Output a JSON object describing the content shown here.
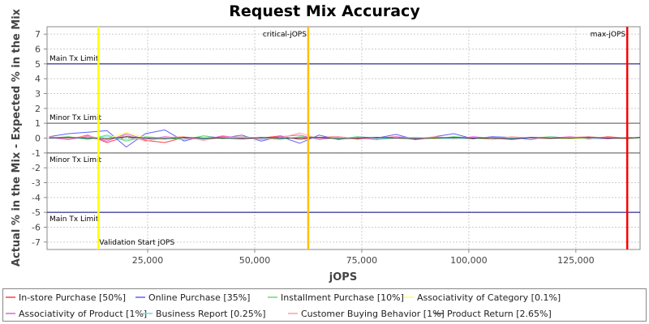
{
  "chart_data": {
    "type": "line",
    "title": "Request Mix Accuracy",
    "xlabel": "jOPS",
    "ylabel": "Actual % in the Mix - Expected % in the Mix",
    "xlim": [
      1500,
      140000
    ],
    "ylim": [
      -7.5,
      7.5
    ],
    "x_ticks": [
      25000,
      50000,
      75000,
      100000,
      125000
    ],
    "x_tick_labels": [
      "25,000",
      "50,000",
      "75,000",
      "100,000",
      "125,000"
    ],
    "y_ticks": [
      7,
      6,
      5,
      4,
      3,
      2,
      1,
      0,
      -1,
      -2,
      -3,
      -4,
      -5,
      -6,
      -7
    ],
    "y_tick_labels": [
      "7",
      "6",
      "5",
      "4",
      "3",
      "2",
      "1",
      "0",
      "-1",
      "-2",
      "-3",
      "-4",
      "-5",
      "-6",
      "-7"
    ],
    "grid": true,
    "legend_position": "bottom",
    "limit_lines": [
      {
        "label": "Main Tx Limit",
        "y": 5,
        "color": "#000080"
      },
      {
        "label": "Minor Tx Limit",
        "y": 1,
        "color": "#555555"
      },
      {
        "label": "Minor Tx Limit",
        "y": -1,
        "color": "#555555"
      },
      {
        "label": "Main Tx Limit",
        "y": -5,
        "color": "#000080"
      }
    ],
    "markers": [
      {
        "label": "Validation Start jOPS",
        "x": 13500,
        "color": "#ffff00",
        "label_position": "bottom"
      },
      {
        "label": "critical-jOPS",
        "x": 62500,
        "color": "#ffc000",
        "label_position": "top"
      },
      {
        "label": "max-jOPS",
        "x": 137000,
        "color": "#ff0000",
        "label_position": "top"
      }
    ],
    "series": [
      {
        "name": "In-store Purchase [50%]",
        "color": "#ff4040",
        "x": [
          2000,
          6500,
          11000,
          15500,
          20000,
          24500,
          29000,
          33500,
          38000,
          42500,
          47000,
          51500,
          56000,
          60500,
          65000,
          69500,
          74000,
          78500,
          83000,
          87500,
          92000,
          96500,
          101000,
          105500,
          110000,
          114500,
          119000,
          123500,
          128000,
          132500,
          137000,
          140000
        ],
        "values": [
          0.05,
          -0.1,
          0.2,
          -0.3,
          0.1,
          -0.15,
          -0.3,
          0.05,
          -0.1,
          0.1,
          -0.05,
          0.0,
          0.15,
          -0.1,
          0.05,
          0.1,
          -0.05,
          0.0,
          0.1,
          -0.1,
          0.05,
          0.0,
          -0.05,
          0.1,
          -0.1,
          0.05,
          0.0,
          0.05,
          -0.05,
          0.1,
          0.0,
          0.05
        ]
      },
      {
        "name": "Online Purchase [35%]",
        "color": "#6060ff",
        "x": [
          2000,
          6500,
          11000,
          15500,
          20000,
          24500,
          29000,
          33500,
          38000,
          42500,
          47000,
          51500,
          56000,
          60500,
          65000,
          69500,
          74000,
          78500,
          83000,
          87500,
          92000,
          96500,
          101000,
          105500,
          110000,
          114500,
          119000,
          123500,
          128000,
          132500,
          137000,
          140000
        ],
        "values": [
          0.1,
          0.3,
          0.4,
          0.5,
          -0.6,
          0.3,
          0.55,
          -0.2,
          0.15,
          0.0,
          0.2,
          -0.2,
          0.1,
          -0.35,
          0.2,
          -0.1,
          0.1,
          0.0,
          0.25,
          -0.1,
          0.1,
          0.3,
          -0.05,
          0.1,
          0.05,
          -0.1,
          0.1,
          0.0,
          0.1,
          -0.05,
          0.05,
          0.0
        ]
      },
      {
        "name": "Installment Purchase [10%]",
        "color": "#60e060",
        "x": [
          2000,
          6500,
          11000,
          15500,
          20000,
          24500,
          29000,
          33500,
          38000,
          42500,
          47000,
          51500,
          56000,
          60500,
          65000,
          69500,
          74000,
          78500,
          83000,
          87500,
          92000,
          96500,
          101000,
          105500,
          110000,
          114500,
          119000,
          123500,
          128000,
          132500,
          137000,
          140000
        ],
        "values": [
          0.0,
          0.1,
          -0.1,
          0.2,
          -0.2,
          0.1,
          0.0,
          -0.1,
          0.15,
          -0.05,
          0.1,
          0.0,
          -0.1,
          0.1,
          0.05,
          -0.05,
          0.1,
          -0.1,
          0.0,
          0.05,
          -0.05,
          0.1,
          0.0,
          -0.1,
          0.05,
          0.0,
          0.1,
          -0.05,
          0.0,
          0.05,
          -0.05,
          0.0
        ]
      },
      {
        "name": "Associativity of Category [0.1%]",
        "color": "#ffff60",
        "x": [
          2000,
          6500,
          11000,
          15500,
          20000,
          24500,
          29000,
          33500,
          38000,
          42500,
          47000,
          51500,
          56000,
          60500,
          65000,
          69500,
          74000,
          78500,
          83000,
          87500,
          92000,
          96500,
          101000,
          105500,
          110000,
          114500,
          119000,
          123500,
          128000,
          132500,
          137000,
          140000
        ],
        "values": [
          0.0,
          0.05,
          0.0,
          -0.05,
          0.4,
          0.0,
          0.05,
          0.0,
          -0.05,
          0.0,
          0.05,
          0.0,
          0.0,
          0.05,
          0.0,
          -0.05,
          0.0,
          0.05,
          0.0,
          0.0,
          -0.05,
          0.0,
          0.05,
          0.0,
          0.0,
          0.05,
          0.0,
          -0.05,
          0.0,
          0.0,
          0.05,
          0.0
        ]
      },
      {
        "name": "Associativity of Product [1%]",
        "color": "#e060e0",
        "x": [
          2000,
          6500,
          11000,
          15500,
          20000,
          24500,
          29000,
          33500,
          38000,
          42500,
          47000,
          51500,
          56000,
          60500,
          65000,
          69500,
          74000,
          78500,
          83000,
          87500,
          92000,
          96500,
          101000,
          105500,
          110000,
          114500,
          119000,
          123500,
          128000,
          132500,
          137000,
          140000
        ],
        "values": [
          0.05,
          -0.1,
          0.1,
          -0.2,
          0.3,
          -0.1,
          0.1,
          0.0,
          -0.1,
          0.15,
          0.0,
          -0.05,
          0.1,
          0.2,
          -0.1,
          0.05,
          0.0,
          -0.1,
          0.1,
          0.0,
          0.05,
          -0.05,
          0.1,
          0.0,
          -0.1,
          0.05,
          0.0,
          0.1,
          0.0,
          -0.05,
          0.05,
          0.0
        ]
      },
      {
        "name": "Business Report [0.25%]",
        "color": "#60e0e0",
        "x": [
          2000,
          6500,
          11000,
          15500,
          20000,
          24500,
          29000,
          33500,
          38000,
          42500,
          47000,
          51500,
          56000,
          60500,
          65000,
          69500,
          74000,
          78500,
          83000,
          87500,
          92000,
          96500,
          101000,
          105500,
          110000,
          114500,
          119000,
          123500,
          128000,
          132500,
          137000,
          140000
        ],
        "values": [
          0.0,
          0.05,
          -0.05,
          0.1,
          -0.1,
          0.05,
          0.0,
          0.05,
          -0.05,
          0.0,
          0.05,
          0.0,
          -0.05,
          0.05,
          0.0,
          0.0,
          0.05,
          -0.05,
          0.0,
          0.05,
          0.0,
          -0.05,
          0.0,
          0.05,
          0.0,
          0.0,
          -0.05,
          0.05,
          0.0,
          0.0,
          0.05,
          0.0
        ]
      },
      {
        "name": "Customer Buying Behavior [1%]",
        "color": "#ffa0a0",
        "x": [
          2000,
          6500,
          11000,
          15500,
          20000,
          24500,
          29000,
          33500,
          38000,
          42500,
          47000,
          51500,
          56000,
          60500,
          65000,
          69500,
          74000,
          78500,
          83000,
          87500,
          92000,
          96500,
          101000,
          105500,
          110000,
          114500,
          119000,
          123500,
          128000,
          132500,
          137000,
          140000
        ],
        "values": [
          0.1,
          -0.05,
          0.15,
          -0.1,
          0.2,
          -0.2,
          0.05,
          0.1,
          -0.15,
          0.05,
          0.1,
          -0.1,
          0.0,
          0.35,
          -0.05,
          0.1,
          -0.1,
          0.05,
          0.0,
          -0.05,
          0.1,
          0.0,
          0.05,
          -0.1,
          0.1,
          0.0,
          -0.05,
          0.05,
          0.1,
          0.0,
          -0.05,
          0.05
        ]
      },
      {
        "name": "Product Return [2.65%]",
        "color": "#404040",
        "x": [
          2000,
          6500,
          11000,
          15500,
          20000,
          24500,
          29000,
          33500,
          38000,
          42500,
          47000,
          51500,
          56000,
          60500,
          65000,
          69500,
          74000,
          78500,
          83000,
          87500,
          92000,
          96500,
          101000,
          105500,
          110000,
          114500,
          119000,
          123500,
          128000,
          132500,
          137000,
          140000
        ],
        "values": [
          0.0,
          0.05,
          0.0,
          -0.05,
          0.1,
          0.0,
          -0.05,
          0.05,
          0.0,
          0.0,
          -0.05,
          0.05,
          0.0,
          0.0,
          0.05,
          -0.05,
          0.0,
          0.05,
          0.0,
          -0.05,
          0.0,
          0.05,
          0.0,
          0.0,
          -0.05,
          0.05,
          0.0,
          0.0,
          0.05,
          0.0,
          0.0,
          0.05
        ]
      }
    ]
  }
}
